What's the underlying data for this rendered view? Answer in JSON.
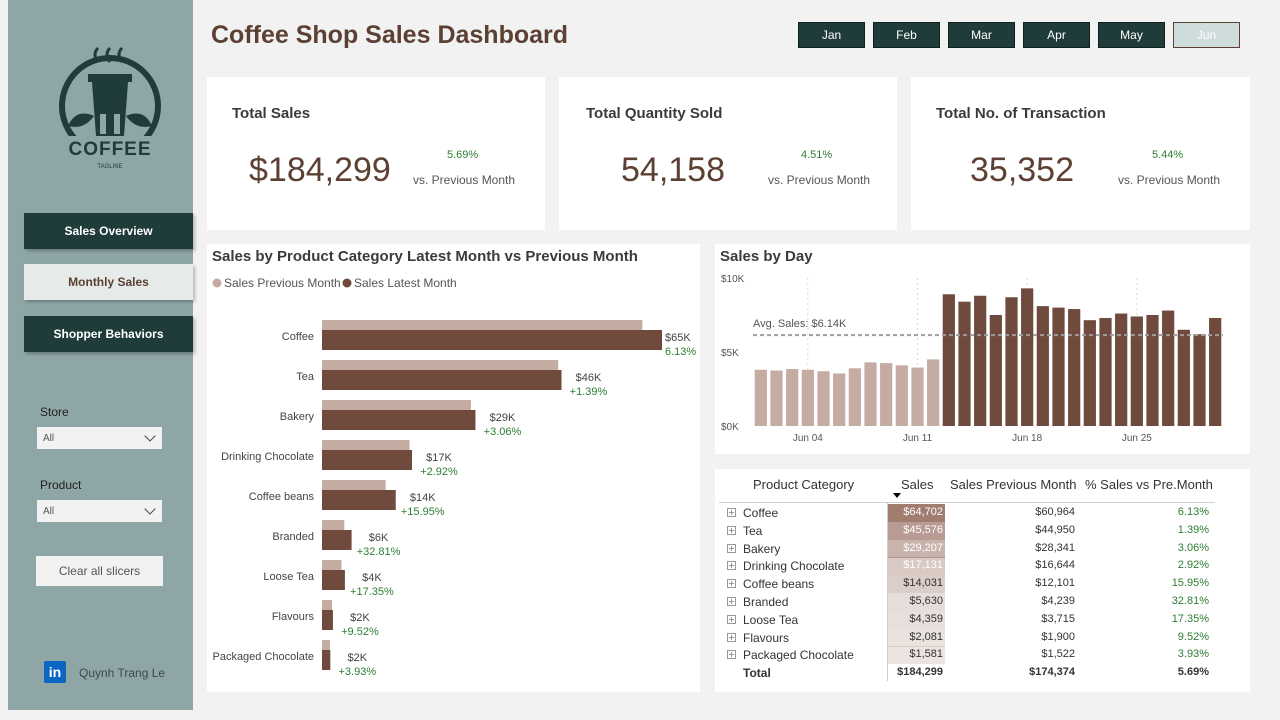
{
  "dashboard": {
    "title": "Coffee Shop Sales Dashboard",
    "months": [
      "Jan",
      "Feb",
      "Mar",
      "Apr",
      "May",
      "Jun"
    ],
    "selected_month": "Jun"
  },
  "sidebar": {
    "logo_text": "COFFEE",
    "logo_tagline": "TAGLINE",
    "nav": [
      "Sales Overview",
      "Monthly Sales",
      "Shopper Behaviors"
    ],
    "active_nav": "Monthly Sales",
    "store_label": "Store",
    "store_value": "All",
    "product_label": "Product",
    "product_value": "All",
    "clear_button": "Clear all slicers",
    "author": "Quynh Trang Le",
    "linkedin_icon": "in"
  },
  "kpis": [
    {
      "title": "Total Sales",
      "value": "$184,299",
      "change": "5.69%",
      "note": "vs. Previous Month"
    },
    {
      "title": "Total Quantity Sold",
      "value": "54,158",
      "change": "4.51%",
      "note": "vs. Previous Month"
    },
    {
      "title": "Total No. of Transaction",
      "value": "35,352",
      "change": "5.44%",
      "note": "vs. Previous Month"
    }
  ],
  "colors": {
    "latest": "#6f4a3d",
    "previous": "#c5aca2",
    "positive": "#2e7d32",
    "sidebar": "#8ea6a5",
    "dark_button": "#1f3b3a"
  },
  "chart_data": [
    {
      "type": "bar",
      "orientation": "horizontal",
      "title": "Sales by Product Category Latest Month vs Previous Month",
      "legend": [
        "Sales Previous Month",
        "Sales Latest Month"
      ],
      "legend_position": "top-left",
      "categories": [
        "Coffee",
        "Tea",
        "Bakery",
        "Drinking Chocolate",
        "Coffee beans",
        "Branded",
        "Loose Tea",
        "Flavours",
        "Packaged Chocolate"
      ],
      "series": [
        {
          "name": "Sales Previous Month",
          "values": [
            60964,
            44950,
            28341,
            16644,
            12101,
            4239,
            3715,
            1900,
            1522
          ]
        },
        {
          "name": "Sales Latest Month",
          "values": [
            64702,
            45576,
            29207,
            17131,
            14031,
            5630,
            4359,
            2081,
            1581
          ]
        }
      ],
      "data_labels": [
        "$65K",
        "$46K",
        "$29K",
        "$17K",
        "$14K",
        "$6K",
        "$4K",
        "$2K",
        "$2K"
      ],
      "change_labels": [
        "6.13%",
        "+1.39%",
        "+3.06%",
        "+2.92%",
        "+15.95%",
        "+32.81%",
        "+17.35%",
        "+9.52%",
        "+3.93%"
      ]
    },
    {
      "type": "bar",
      "title": "Sales by Day",
      "x_ticks": [
        "Jun 04",
        "Jun 11",
        "Jun 18",
        "Jun 25"
      ],
      "y_ticks": [
        "$0K",
        "$5K",
        "$10K"
      ],
      "ylim": [
        0,
        10000
      ],
      "average_label": "Avg. Sales: $6.14K",
      "average": 6140,
      "days": [
        1,
        2,
        3,
        4,
        5,
        6,
        7,
        8,
        9,
        10,
        11,
        12,
        13,
        14,
        15,
        16,
        17,
        18,
        19,
        20,
        21,
        22,
        23,
        24,
        25,
        26,
        27,
        28,
        29,
        30
      ],
      "values": [
        3800,
        3750,
        3850,
        3800,
        3700,
        3550,
        3900,
        4300,
        4250,
        4100,
        3950,
        4500,
        8900,
        8400,
        8800,
        7500,
        8700,
        9300,
        8100,
        8000,
        7900,
        7150,
        7300,
        7600,
        7400,
        7500,
        7800,
        6500,
        6200,
        7300
      ],
      "above_average_color": "#6f4a3d",
      "below_average_color": "#c5aca2"
    }
  ],
  "table": {
    "headers": [
      "Product Category",
      "Sales",
      "Sales Previous Month",
      "% Sales vs Pre.Month"
    ],
    "rows": [
      {
        "category": "Coffee",
        "sales": "$64,702",
        "prev": "$60,964",
        "pct": "6.13%",
        "shade": 1.0
      },
      {
        "category": "Tea",
        "sales": "$45,576",
        "prev": "$44,950",
        "pct": "1.39%",
        "shade": 0.72
      },
      {
        "category": "Bakery",
        "sales": "$29,207",
        "prev": "$28,341",
        "pct": "3.06%",
        "shade": 0.5
      },
      {
        "category": "Drinking Chocolate",
        "sales": "$17,131",
        "prev": "$16,644",
        "pct": "2.92%",
        "shade": 0.32
      },
      {
        "category": "Coffee beans",
        "sales": "$14,031",
        "prev": "$12,101",
        "pct": "15.95%",
        "shade": 0.27
      },
      {
        "category": "Branded",
        "sales": "$5,630",
        "prev": "$4,239",
        "pct": "32.81%",
        "shade": 0.14
      },
      {
        "category": "Loose Tea",
        "sales": "$4,359",
        "prev": "$3,715",
        "pct": "17.35%",
        "shade": 0.12
      },
      {
        "category": "Flavours",
        "sales": "$2,081",
        "prev": "$1,900",
        "pct": "9.52%",
        "shade": 0.08
      },
      {
        "category": "Packaged Chocolate",
        "sales": "$1,581",
        "prev": "$1,522",
        "pct": "3.93%",
        "shade": 0.07
      }
    ],
    "total": {
      "label": "Total",
      "sales": "$184,299",
      "prev": "$174,374",
      "pct": "5.69%"
    }
  }
}
